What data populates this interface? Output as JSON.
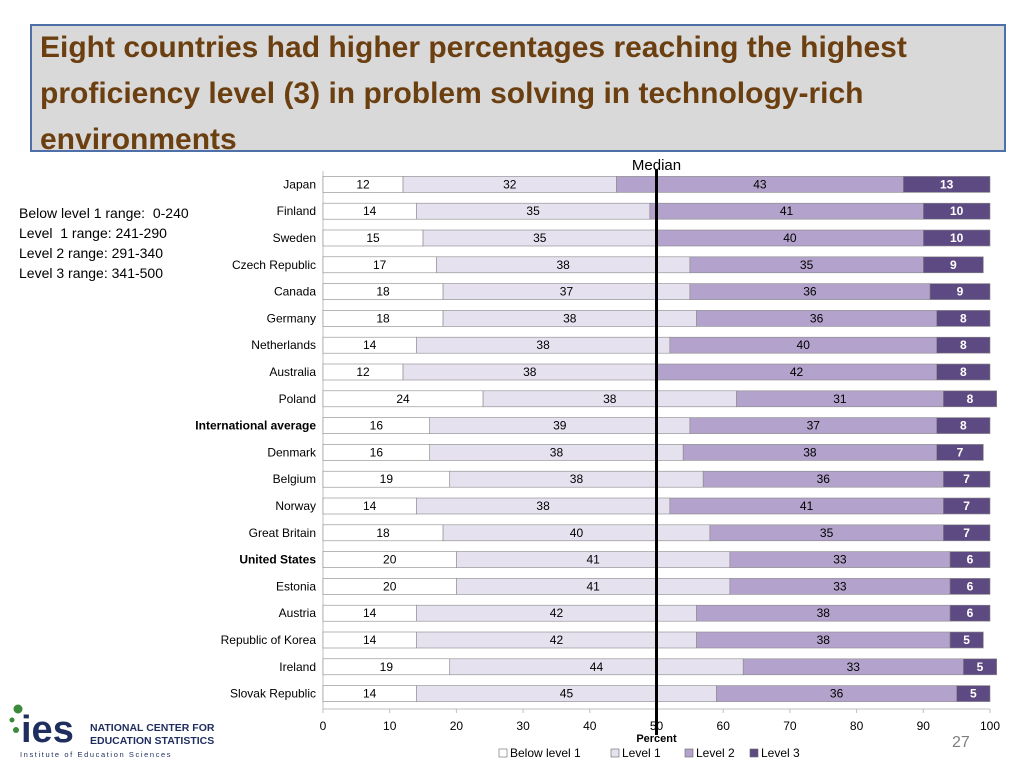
{
  "slide": {
    "title": "Eight countries had higher percentages reaching the highest proficiency level (3) in problem solving in technology-rich environments",
    "page_number": "27"
  },
  "ranges": [
    "Below level 1 range:  0-240",
    "Level  1 range: 241-290",
    "Level 2 range: 291-340",
    "Level 3 range: 341-500"
  ],
  "logo": {
    "wordmark": "ies",
    "line1": "NATIONAL CENTER FOR",
    "line2": "EDUCATION STATISTICS",
    "tagline": "Institute of Education Sciences"
  },
  "chart_data": {
    "type": "bar",
    "orientation": "horizontal",
    "stacked": true,
    "xlabel": "Percent",
    "xlim": [
      0,
      100
    ],
    "xticks": [
      0,
      10,
      20,
      30,
      40,
      50,
      60,
      70,
      80,
      90,
      100
    ],
    "reference_line": {
      "label": "Median",
      "value": 50
    },
    "legend_position": "bottom",
    "categories": [
      "Japan",
      "Finland",
      "Sweden",
      "Czech Republic",
      "Canada",
      "Germany",
      "Netherlands",
      "Australia",
      "Poland",
      "International average",
      "Denmark",
      "Belgium",
      "Norway",
      "Great Britain",
      "United States",
      "Estonia",
      "Austria",
      "Republic of Korea",
      "Ireland",
      "Slovak Republic"
    ],
    "bold_categories": [
      "International average",
      "United States"
    ],
    "series": [
      {
        "name": "Below level 1",
        "color": "#ffffff",
        "values": [
          12,
          14,
          15,
          17,
          18,
          18,
          14,
          12,
          24,
          16,
          16,
          19,
          14,
          18,
          20,
          20,
          14,
          14,
          19,
          14
        ]
      },
      {
        "name": "Level 1",
        "color": "#e6e1ef",
        "values": [
          32,
          35,
          35,
          38,
          37,
          38,
          38,
          38,
          38,
          39,
          38,
          38,
          38,
          40,
          41,
          41,
          42,
          42,
          44,
          45
        ]
      },
      {
        "name": "Level 2",
        "color": "#b3a3cc",
        "values": [
          43,
          41,
          40,
          35,
          36,
          36,
          40,
          42,
          31,
          37,
          38,
          36,
          41,
          35,
          33,
          33,
          38,
          38,
          33,
          36
        ]
      },
      {
        "name": "Level 3",
        "color": "#5e4a82",
        "values": [
          13,
          10,
          10,
          9,
          9,
          8,
          8,
          8,
          8,
          8,
          7,
          7,
          7,
          7,
          6,
          6,
          6,
          5,
          5,
          5
        ]
      }
    ]
  }
}
